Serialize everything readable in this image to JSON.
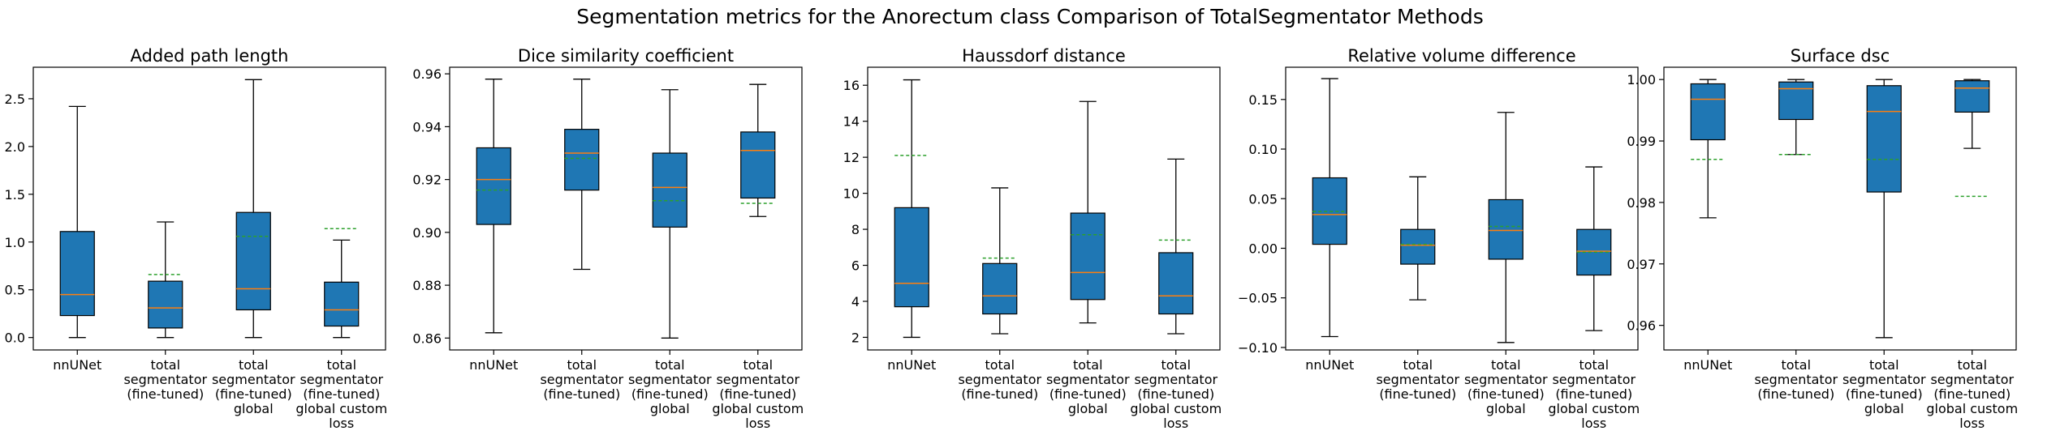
{
  "figure_title": "Segmentation metrics for the Anorectum class Comparison of TotalSegmentator Methods",
  "colors": {
    "box_fill": "#1f77b4",
    "median": "#ff7f0e",
    "mean": "#2ca02c",
    "whisker": "#000000"
  },
  "categories": [
    [
      "nnUNet"
    ],
    [
      "total",
      "segmentator",
      "(fine-tuned)"
    ],
    [
      "total",
      "segmentator",
      "(fine-tuned)",
      "global"
    ],
    [
      "total",
      "segmentator",
      "(fine-tuned)",
      "global custom",
      "loss"
    ]
  ],
  "chart_data": [
    {
      "type": "box",
      "title": "Added path length",
      "ylim": [
        -0.13,
        2.83
      ],
      "yticks": [
        "0.0",
        "0.5",
        "1.0",
        "1.5",
        "2.0",
        "2.5"
      ],
      "ytick_values": [
        0,
        0.5,
        1.0,
        1.5,
        2.0,
        2.5
      ],
      "boxes": [
        {
          "whislo": 0.0,
          "q1": 0.23,
          "med": 0.45,
          "q3": 1.11,
          "whishi": 2.42,
          "mean": null
        },
        {
          "whislo": 0.0,
          "q1": 0.1,
          "med": 0.31,
          "q3": 0.59,
          "whishi": 1.21,
          "mean": 0.66
        },
        {
          "whislo": 0.0,
          "q1": 0.29,
          "med": 0.51,
          "q3": 1.31,
          "whishi": 2.7,
          "mean": 1.06
        },
        {
          "whislo": 0.0,
          "q1": 0.12,
          "med": 0.29,
          "q3": 0.58,
          "whishi": 1.02,
          "mean": 1.14
        }
      ]
    },
    {
      "type": "box",
      "title": "Dice similarity coefficient",
      "ylim": [
        0.8555,
        0.9625
      ],
      "yticks": [
        "0.86",
        "0.88",
        "0.90",
        "0.92",
        "0.94",
        "0.96"
      ],
      "ytick_values": [
        0.86,
        0.88,
        0.9,
        0.92,
        0.94,
        0.96
      ],
      "boxes": [
        {
          "whislo": 0.862,
          "q1": 0.903,
          "med": 0.92,
          "q3": 0.932,
          "whishi": 0.958,
          "mean": 0.916
        },
        {
          "whislo": 0.886,
          "q1": 0.916,
          "med": 0.93,
          "q3": 0.939,
          "whishi": 0.958,
          "mean": 0.928
        },
        {
          "whislo": 0.86,
          "q1": 0.902,
          "med": 0.917,
          "q3": 0.93,
          "whishi": 0.954,
          "mean": 0.912
        },
        {
          "whislo": 0.906,
          "q1": 0.913,
          "med": 0.931,
          "q3": 0.938,
          "whishi": 0.956,
          "mean": 0.911
        }
      ]
    },
    {
      "type": "box",
      "title": "Haussdorf distance",
      "ylim": [
        1.3,
        17.0
      ],
      "yticks": [
        "2",
        "4",
        "6",
        "8",
        "10",
        "12",
        "14",
        "16"
      ],
      "ytick_values": [
        2,
        4,
        6,
        8,
        10,
        12,
        14,
        16
      ],
      "boxes": [
        {
          "whislo": 2.0,
          "q1": 3.7,
          "med": 5.0,
          "q3": 9.2,
          "whishi": 16.3,
          "mean": 12.1
        },
        {
          "whislo": 2.2,
          "q1": 3.3,
          "med": 4.3,
          "q3": 6.1,
          "whishi": 10.3,
          "mean": 6.4
        },
        {
          "whislo": 2.8,
          "q1": 4.1,
          "med": 5.6,
          "q3": 8.9,
          "whishi": 15.1,
          "mean": 7.7
        },
        {
          "whislo": 2.2,
          "q1": 3.3,
          "med": 4.3,
          "q3": 6.7,
          "whishi": 11.9,
          "mean": 7.4
        }
      ]
    },
    {
      "type": "box",
      "title": "Relative volume difference",
      "ylim": [
        -0.1025,
        0.1825
      ],
      "yticks": [
        "−0.10",
        "−0.05",
        "0.00",
        "0.05",
        "0.10",
        "0.15"
      ],
      "ytick_values": [
        -0.1,
        -0.05,
        0.0,
        0.05,
        0.1,
        0.15
      ],
      "boxes": [
        {
          "whislo": -0.089,
          "q1": 0.004,
          "med": 0.034,
          "q3": 0.071,
          "whishi": 0.171,
          "mean": 0.037
        },
        {
          "whislo": -0.052,
          "q1": -0.016,
          "med": 0.003,
          "q3": 0.019,
          "whishi": 0.072,
          "mean": 0.004
        },
        {
          "whislo": -0.095,
          "q1": -0.011,
          "med": 0.018,
          "q3": 0.049,
          "whishi": 0.137,
          "mean": 0.022
        },
        {
          "whislo": -0.083,
          "q1": -0.027,
          "med": -0.003,
          "q3": 0.019,
          "whishi": 0.082,
          "mean": -0.004
        }
      ]
    },
    {
      "type": "box",
      "title": "Surface dsc",
      "ylim": [
        0.956,
        1.002
      ],
      "yticks": [
        "0.96",
        "0.97",
        "0.98",
        "0.99",
        "1.00"
      ],
      "ytick_values": [
        0.96,
        0.97,
        0.98,
        0.99,
        1.0
      ],
      "boxes": [
        {
          "whislo": 0.9775,
          "q1": 0.9902,
          "med": 0.9968,
          "q3": 0.9993,
          "whishi": 1.0,
          "mean": 0.987
        },
        {
          "whislo": 0.9878,
          "q1": 0.9935,
          "med": 0.9985,
          "q3": 0.9996,
          "whishi": 1.0,
          "mean": 0.9878
        },
        {
          "whislo": 0.958,
          "q1": 0.9817,
          "med": 0.9948,
          "q3": 0.999,
          "whishi": 1.0,
          "mean": 0.987
        },
        {
          "whislo": 0.9888,
          "q1": 0.9947,
          "med": 0.9986,
          "q3": 0.9998,
          "whishi": 1.0,
          "mean": 0.981
        }
      ]
    }
  ]
}
